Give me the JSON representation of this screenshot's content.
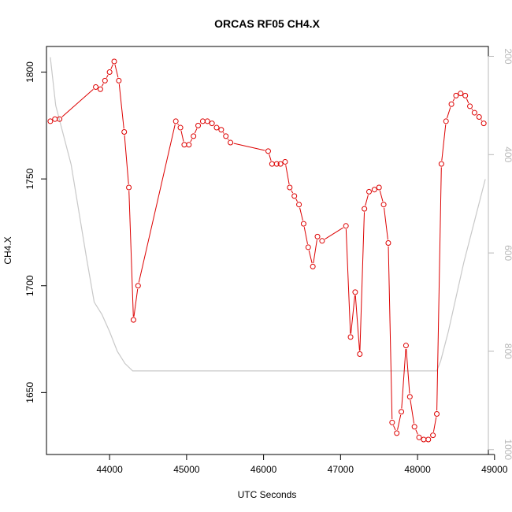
{
  "chart_data": {
    "type": "line",
    "title": "ORCAS RF05 CH4.X",
    "xlabel": "UTC Seconds",
    "ylabel": "CH4.X",
    "xlim": [
      43180,
      48920
    ],
    "ylim": [
      1621,
      1812
    ],
    "x_ticks": [
      44000,
      45000,
      46000,
      47000,
      48000,
      49000
    ],
    "y_ticks": [
      1650,
      1700,
      1750,
      1800
    ],
    "y2_lim": [
      1010,
      180
    ],
    "y2_ticks": [
      200,
      400,
      600,
      800,
      1000
    ],
    "grid": false,
    "colors": {
      "series": "#dd0000",
      "secondary": "#c8c8c8"
    },
    "series": [
      {
        "type": "line-points",
        "x": [
          43230,
          43290,
          43350,
          43820,
          43880,
          43940,
          44000,
          44060,
          44120,
          44190,
          44250,
          44310,
          44370,
          44860,
          44920,
          44970,
          45030,
          45090,
          45150,
          45210,
          45270,
          45330,
          45390,
          45450,
          45510,
          45570,
          46060,
          46110,
          46170,
          46220,
          46280,
          46340,
          46400,
          46460,
          46520,
          46580,
          46640,
          46700,
          46760,
          47070,
          47130,
          47190,
          47250,
          47310,
          47370,
          47440,
          47500,
          47560,
          47620,
          47670,
          47730,
          47790,
          47850,
          47900,
          47960,
          48020,
          48080,
          48140,
          48200,
          48250,
          48310,
          48370,
          48440,
          48500,
          48560,
          48620,
          48680,
          48740,
          48800,
          48860
        ],
        "y": [
          1777,
          1778,
          1778,
          1793,
          1792,
          1796,
          1800,
          1805,
          1796,
          1772,
          1746,
          1684,
          1700,
          1777,
          1774,
          1766,
          1766,
          1770,
          1775,
          1777,
          1777,
          1776,
          1774,
          1773,
          1770,
          1767,
          1763,
          1757,
          1757,
          1757,
          1758,
          1746,
          1742,
          1738,
          1729,
          1718,
          1709,
          1723,
          1721,
          1728,
          1676,
          1697,
          1668,
          1736,
          1744,
          1745,
          1746,
          1738,
          1720,
          1636,
          1631,
          1641,
          1672,
          1648,
          1634,
          1629,
          1628,
          1628,
          1630,
          1640,
          1757,
          1777,
          1785,
          1789,
          1790,
          1789,
          1784,
          1781,
          1779,
          1776
        ]
      },
      {
        "type": "line",
        "axis": "right",
        "x": [
          43230,
          43300,
          43500,
          43700,
          43800,
          43900,
          44000,
          44100,
          44200,
          44300,
          44500,
          45000,
          46000,
          47000,
          48000,
          48250,
          48300,
          48400,
          48600,
          48880
        ],
        "y": [
          202,
          300,
          420,
          610,
          700,
          725,
          760,
          800,
          825,
          840,
          840,
          840,
          840,
          840,
          840,
          840,
          820,
          760,
          620,
          450
        ]
      }
    ]
  }
}
